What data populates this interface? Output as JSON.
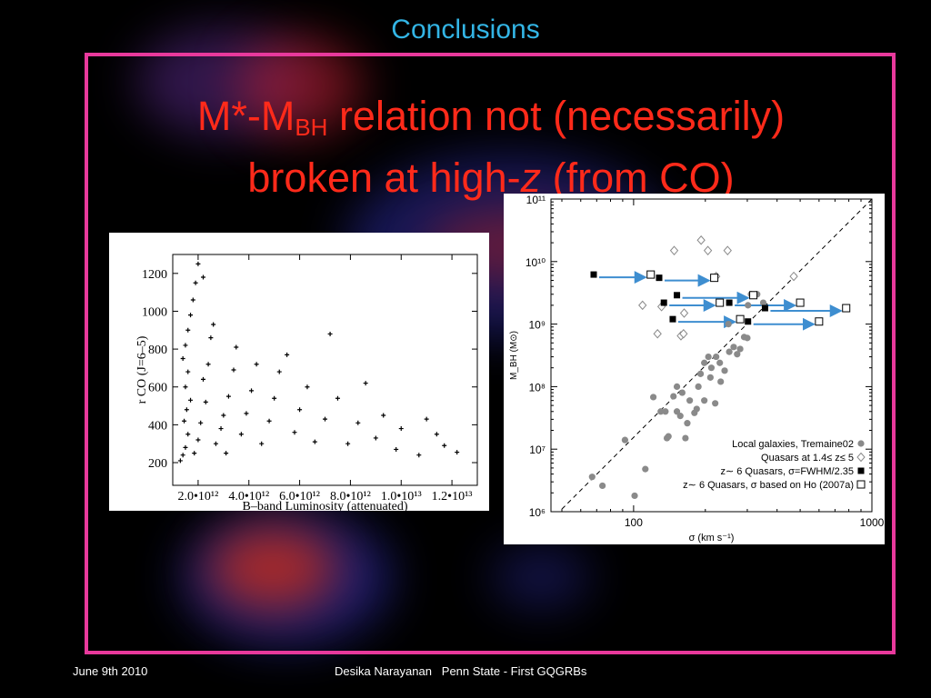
{
  "slide": {
    "title": "Conclusions",
    "headline_prefix": "M*-M",
    "headline_sub": "BH",
    "headline_mid": " relation not (necessarily)",
    "headline_line2_a": "broken at high-",
    "headline_line2_z": "z",
    "headline_line2_b": " (from CO)"
  },
  "footer": {
    "date": "June 9th 2010",
    "center": "Desika Narayanan   Penn State - First GQGRBs"
  },
  "colors": {
    "title": "#33b5e5",
    "headline": "#ff2a1a",
    "frame": "#e8399c",
    "arrow": "#3e8ed0"
  },
  "chart_data": [
    {
      "type": "scatter",
      "xlabel": "B–band Luminosity (attenuated)",
      "ylabel": "r CO (J=6–5)",
      "xtick_labels": [
        "2.0•10¹²",
        "4.0•10¹²",
        "6.0•10¹²",
        "8.0•10¹²",
        "1.0•10¹³",
        "1.2•10¹³"
      ],
      "xticks": [
        2000000000000.0,
        4000000000000.0,
        6000000000000.0,
        8000000000000.0,
        10000000000000.0,
        12000000000000.0
      ],
      "yticks": [
        200,
        400,
        600,
        800,
        1000,
        1200
      ],
      "xlim": [
        1000000000000.0,
        13000000000000.0
      ],
      "ylim": [
        80,
        1300
      ],
      "marker": "plus",
      "points": [
        [
          1300000000000.0,
          210
        ],
        [
          1400000000000.0,
          240
        ],
        [
          1500000000000.0,
          280
        ],
        [
          1600000000000.0,
          350
        ],
        [
          1450000000000.0,
          420
        ],
        [
          1550000000000.0,
          480
        ],
        [
          1700000000000.0,
          530
        ],
        [
          1500000000000.0,
          600
        ],
        [
          1600000000000.0,
          680
        ],
        [
          1400000000000.0,
          750
        ],
        [
          1500000000000.0,
          820
        ],
        [
          1600000000000.0,
          900
        ],
        [
          1700000000000.0,
          980
        ],
        [
          1800000000000.0,
          1060
        ],
        [
          1900000000000.0,
          1150
        ],
        [
          2000000000000.0,
          1250
        ],
        [
          2200000000000.0,
          1180
        ],
        [
          1850000000000.0,
          250
        ],
        [
          2000000000000.0,
          320
        ],
        [
          2100000000000.0,
          410
        ],
        [
          2300000000000.0,
          520
        ],
        [
          2200000000000.0,
          640
        ],
        [
          2400000000000.0,
          720
        ],
        [
          2500000000000.0,
          860
        ],
        [
          2600000000000.0,
          930
        ],
        [
          2700000000000.0,
          300
        ],
        [
          2900000000000.0,
          380
        ],
        [
          3000000000000.0,
          450
        ],
        [
          3200000000000.0,
          550
        ],
        [
          3400000000000.0,
          690
        ],
        [
          3500000000000.0,
          810
        ],
        [
          3100000000000.0,
          250
        ],
        [
          3700000000000.0,
          350
        ],
        [
          3900000000000.0,
          460
        ],
        [
          4100000000000.0,
          580
        ],
        [
          4300000000000.0,
          720
        ],
        [
          4500000000000.0,
          300
        ],
        [
          4800000000000.0,
          420
        ],
        [
          5000000000000.0,
          540
        ],
        [
          5200000000000.0,
          680
        ],
        [
          5500000000000.0,
          770
        ],
        [
          5800000000000.0,
          360
        ],
        [
          6000000000000.0,
          480
        ],
        [
          6300000000000.0,
          600
        ],
        [
          6600000000000.0,
          310
        ],
        [
          7000000000000.0,
          430
        ],
        [
          7200000000000.0,
          880
        ],
        [
          7500000000000.0,
          540
        ],
        [
          7900000000000.0,
          300
        ],
        [
          8300000000000.0,
          410
        ],
        [
          8600000000000.0,
          620
        ],
        [
          9000000000000.0,
          330
        ],
        [
          9300000000000.0,
          450
        ],
        [
          9800000000000.0,
          270
        ],
        [
          10000000000000.0,
          380
        ],
        [
          10700000000000.0,
          240
        ],
        [
          11000000000000.0,
          430
        ],
        [
          11400000000000.0,
          350
        ],
        [
          11700000000000.0,
          290
        ],
        [
          12200000000000.0,
          255
        ]
      ]
    },
    {
      "type": "scatter",
      "xscale": "log",
      "yscale": "log",
      "xlabel": "σ (km s⁻¹)",
      "ylabel": "M_BH (M⊙)",
      "xlim": [
        45,
        1000
      ],
      "ylim": [
        1000000.0,
        100000000000.0
      ],
      "xtick_labels": [
        "100",
        "1000"
      ],
      "xticks": [
        100,
        1000
      ],
      "ytick_labels": [
        "10⁶",
        "10⁷",
        "10⁸",
        "10⁹",
        "10¹⁰",
        "10¹¹"
      ],
      "yticks": [
        1000000.0,
        10000000.0,
        100000000.0,
        1000000000.0,
        10000000000.0,
        100000000000.0
      ],
      "fit_line": {
        "style": "dashed",
        "x": [
          50,
          1000
        ],
        "y": [
          1100000.0,
          100000000000.0
        ]
      },
      "series": [
        {
          "name": "Local galaxies, Tremaine02",
          "marker": "filled-circle",
          "color": "#8a8a8a",
          "points": [
            [
              67,
              3600000.0
            ],
            [
              74,
              2600000.0
            ],
            [
              92,
              14000000.0
            ],
            [
              101,
              1800000.0
            ],
            [
              112,
              4800000.0
            ],
            [
              130,
              40000000.0
            ],
            [
              140,
              16000000.0
            ],
            [
              138,
              15000000.0
            ],
            [
              152,
              100000000.0
            ],
            [
              157,
              34000000.0
            ],
            [
              168,
              26000000.0
            ],
            [
              165,
              15000000.0
            ],
            [
              172,
              60000000.0
            ],
            [
              187,
              100000000.0
            ],
            [
              191,
              160000000.0
            ],
            [
              198,
              240000000.0
            ],
            [
              206,
              300000000.0
            ],
            [
              212,
              200000000.0
            ],
            [
              222,
              300000000.0
            ],
            [
              232,
              120000000.0
            ],
            [
              241,
              180000000.0
            ],
            [
              252,
              360000000.0
            ],
            [
              263,
              430000000.0
            ],
            [
              272,
              330000000.0
            ],
            [
              291,
              620000000.0
            ],
            [
              302,
              2000000000.0
            ],
            [
              311,
              3000000000.0
            ],
            [
              220,
              54000000.0
            ],
            [
              184,
              44000000.0
            ],
            [
              136,
              40000000.0
            ],
            [
              147,
              70000000.0
            ],
            [
              250,
              1000000000.0
            ],
            [
              160,
              80000000.0
            ],
            [
              121,
              68000000.0
            ],
            [
              198,
              60000000.0
            ],
            [
              180,
              38000000.0
            ],
            [
              210,
              140000000.0
            ],
            [
              230,
              240000000.0
            ],
            [
              280,
              400000000.0
            ],
            [
              152,
              40000000.0
            ],
            [
              300,
              600000000.0
            ],
            [
              350,
              2200000000.0
            ],
            [
              330,
              3000000000.0
            ],
            [
              282,
              1200000000.0
            ]
          ]
        },
        {
          "name": "Quasars at 1.4≤ z≤ 5",
          "marker": "open-diamond",
          "color": "#8a8a8a",
          "points": [
            [
              109,
              2000000000.0
            ],
            [
              126,
              700000000.0
            ],
            [
              148,
              15000000000.0
            ],
            [
              158,
              650000000.0
            ],
            [
              163,
              1500000000.0
            ],
            [
              192,
              22000000000.0
            ],
            [
              205,
              15000000000.0
            ],
            [
              222,
              5800000000.0
            ],
            [
              248,
              15000000000.0
            ],
            [
              470,
              5800000000.0
            ],
            [
              131,
              1900000000.0
            ],
            [
              162,
              700000000.0
            ]
          ]
        },
        {
          "name": "z∼ 6 Quasars, σ=FWHM/2.35",
          "marker": "filled-square",
          "color": "#000000",
          "points": [
            [
              68,
              6200000000.0
            ],
            [
              128,
              5500000000.0
            ],
            [
              134,
              2200000000.0
            ],
            [
              146,
              1200000000.0
            ],
            [
              152,
              2900000000.0
            ],
            [
              252,
              2200000000.0
            ],
            [
              302,
              1100000000.0
            ],
            [
              356,
              1800000000.0
            ]
          ]
        },
        {
          "name": "z∼ 6 Quasars, σ based on Ho (2007a)",
          "marker": "open-square",
          "color": "#000000",
          "points": [
            [
              118,
              6200000000.0
            ],
            [
              218,
              5500000000.0
            ],
            [
              230,
              2200000000.0
            ],
            [
              280,
              1200000000.0
            ],
            [
              318,
              2900000000.0
            ],
            [
              500,
              2200000000.0
            ],
            [
              600,
              1100000000.0
            ],
            [
              780,
              1800000000.0
            ]
          ]
        }
      ]
    }
  ]
}
